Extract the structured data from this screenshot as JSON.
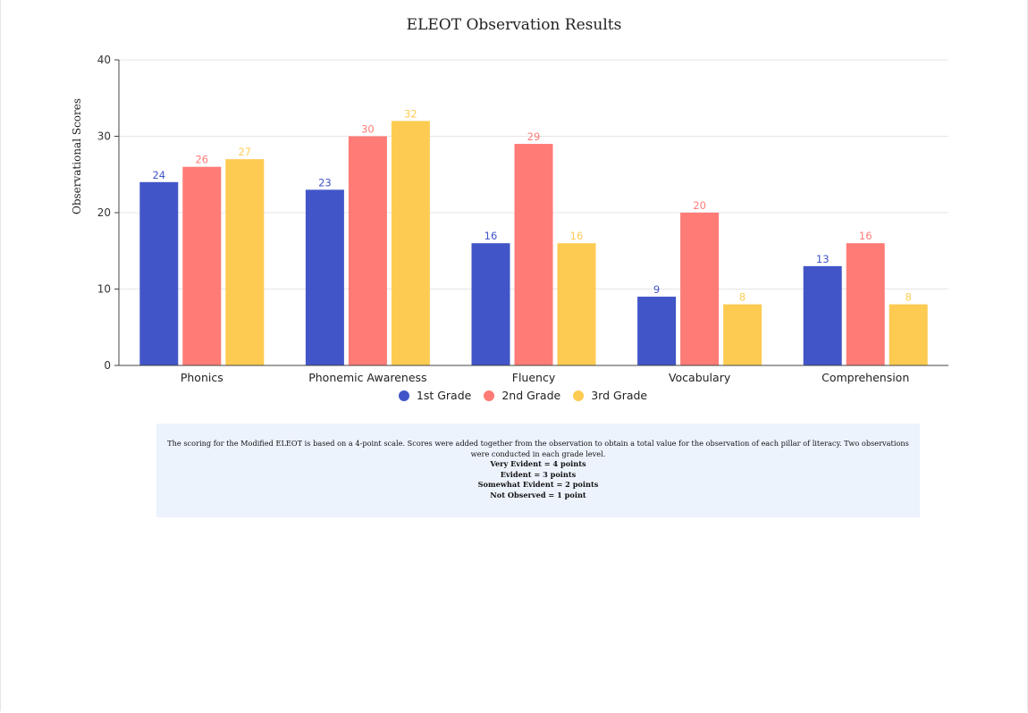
{
  "chart_data": {
    "type": "bar",
    "title": "ELEOT Observation Results",
    "xlabel": "",
    "ylabel": "Observational Scores",
    "ylim": [
      0,
      40
    ],
    "yticks": [
      0,
      10,
      20,
      30,
      40
    ],
    "grid": true,
    "legend_position": "bottom-center",
    "categories": [
      "Phonics",
      "Phonemic Awareness",
      "Fluency",
      "Vocabulary",
      "Comprehension"
    ],
    "series": [
      {
        "name": "1st Grade",
        "color": "#4255c8",
        "values": [
          24,
          23,
          16,
          9,
          13
        ]
      },
      {
        "name": "2nd Grade",
        "color": "#ff7b76",
        "values": [
          26,
          30,
          29,
          20,
          16
        ]
      },
      {
        "name": "3rd Grade",
        "color": "#fecb52",
        "values": [
          27,
          32,
          16,
          8,
          8
        ]
      }
    ]
  },
  "note": {
    "text": "The scoring for the Modified ELEOT is based on a 4-point scale. Scores were added together from the observation to obtain a total value for the observation of each pillar of literacy.  Two observations were conducted in each grade level.",
    "lines": [
      "Very Evident = 4 points",
      "Evident = 3 points",
      "Somewhat Evident = 2 points",
      "Not Observed = 1 point"
    ]
  }
}
